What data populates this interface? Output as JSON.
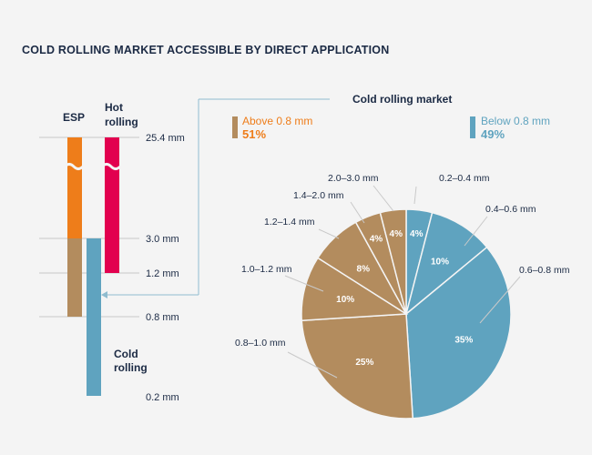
{
  "title": "COLD ROLLING MARKET ACCESSIBLE BY DIRECT APPLICATION",
  "colors": {
    "esp_orange": "#ee7d1a",
    "hot_red": "#e2004f",
    "tan": "#b38c5e",
    "blue": "#5fa3bf",
    "navy": "#1b2a44",
    "line": "#8fbccf"
  },
  "left_diagram": {
    "esp_label": "ESP",
    "hot_label_line1": "Hot",
    "hot_label_line2": "rolling",
    "cold_label_line1": "Cold",
    "cold_label_line2": "rolling",
    "thickness_labels": [
      "25.4 mm",
      "3.0 mm",
      "1.2 mm",
      "0.8 mm",
      "0.2 mm"
    ]
  },
  "chart_data": {
    "type": "pie",
    "title": "Cold rolling market",
    "groups": [
      {
        "label": "Above 0.8 mm",
        "value": "51%"
      },
      {
        "label": "Below 0.8 mm",
        "value": "49%"
      }
    ],
    "slices": [
      {
        "label": "0.2–0.4 mm",
        "value": 4,
        "text": "4%",
        "group": "below"
      },
      {
        "label": "0.4–0.6 mm",
        "value": 10,
        "text": "10%",
        "group": "below"
      },
      {
        "label": "0.6–0.8 mm",
        "value": 35,
        "text": "35%",
        "group": "below"
      },
      {
        "label": "0.8–1.0 mm",
        "value": 25,
        "text": "25%",
        "group": "above"
      },
      {
        "label": "1.0–1.2 mm",
        "value": 10,
        "text": "10%",
        "group": "above"
      },
      {
        "label": "1.2–1.4 mm",
        "value": 8,
        "text": "8%",
        "group": "above"
      },
      {
        "label": "1.4–2.0 mm",
        "value": 4,
        "text": "4%",
        "group": "above"
      },
      {
        "label": "2.0–3.0 mm",
        "value": 4,
        "text": "4%",
        "group": "above"
      }
    ]
  }
}
